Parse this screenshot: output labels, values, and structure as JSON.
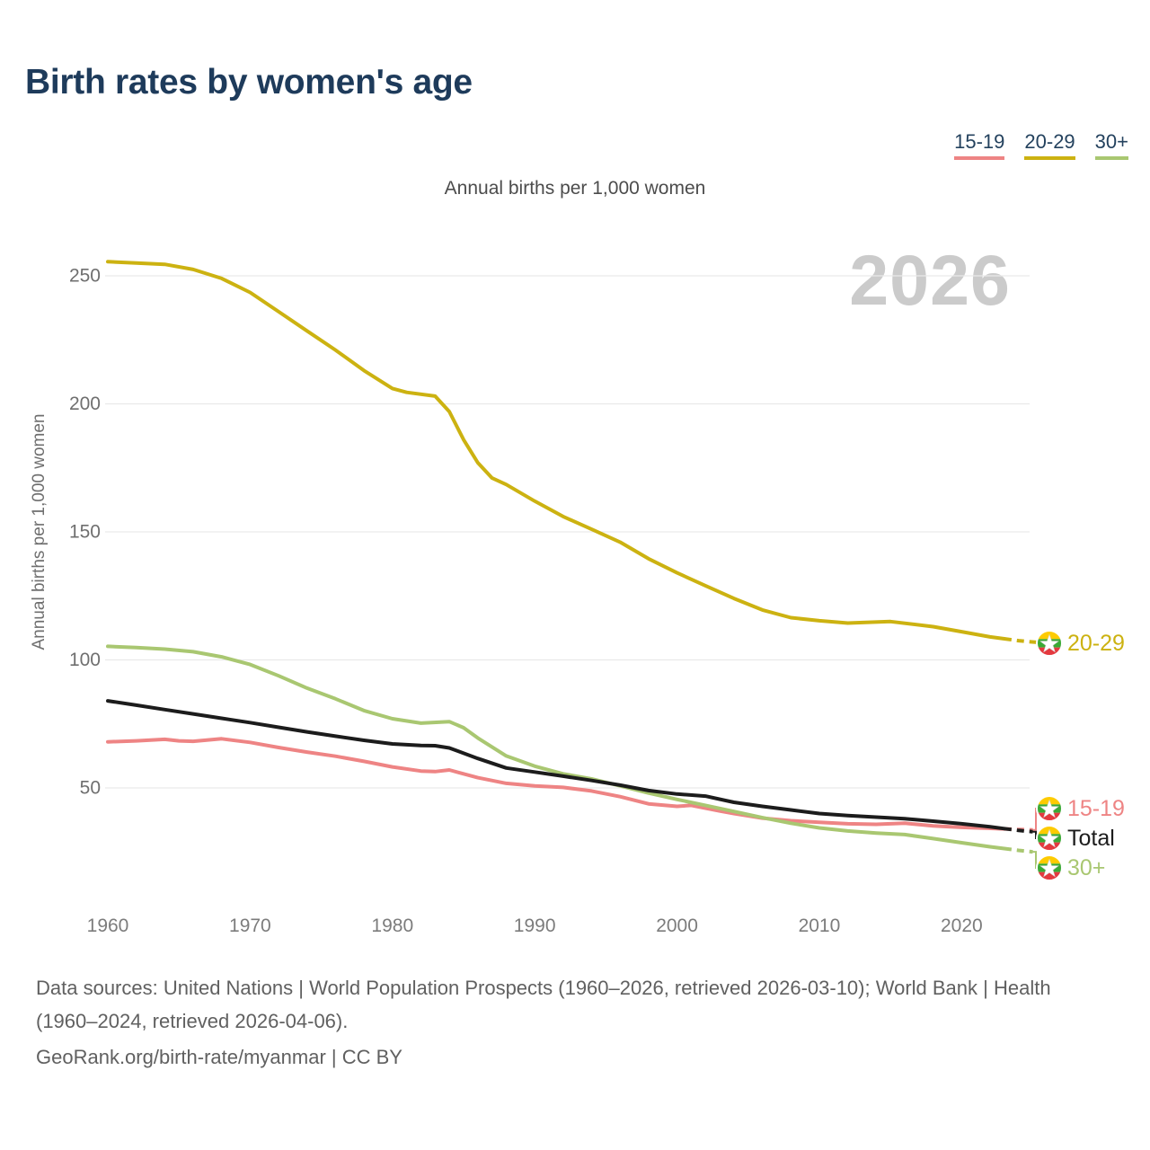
{
  "header": {
    "title": "Birth rates by women's age"
  },
  "subtitle": "Annual births per 1,000 women",
  "watermark": "2026",
  "y_axis_title": "Annual births per 1,000 women",
  "footer": {
    "sources_line": "Data sources: United Nations | World Population Prospects (1960–2026, retrieved 2026-03-10); World Bank | Health (1960–2024, retrieved 2026-04-06).",
    "attribution_line": "GeoRank.org/birth-rate/myanmar | CC BY"
  },
  "chart_data": {
    "type": "line",
    "title": "Annual births per 1,000 women",
    "ylabel": "Annual births per 1,000 women",
    "xlim": [
      1960,
      2026
    ],
    "ylim": [
      20,
      260
    ],
    "xticks": [
      1960,
      1970,
      1980,
      1990,
      2000,
      2010,
      2020
    ],
    "yticks": [
      50,
      100,
      150,
      200,
      250
    ],
    "grid": "horizontal",
    "legend_position": "top-right",
    "projection_dashed_from": 2023,
    "end_label_icon": "myanmar-flag-icon",
    "series": [
      {
        "id": "15-19",
        "label": "15-19",
        "color": "#ee8484",
        "in_legend": true,
        "points": [
          [
            1960,
            68
          ],
          [
            1962,
            68.4
          ],
          [
            1964,
            69
          ],
          [
            1965,
            68.4
          ],
          [
            1966,
            68.2
          ],
          [
            1968,
            69.2
          ],
          [
            1970,
            67.8
          ],
          [
            1972,
            65.8
          ],
          [
            1974,
            64
          ],
          [
            1976,
            62.4
          ],
          [
            1978,
            60.4
          ],
          [
            1980,
            58.2
          ],
          [
            1982,
            56.6
          ],
          [
            1983,
            56.4
          ],
          [
            1984,
            57
          ],
          [
            1986,
            54
          ],
          [
            1988,
            51.8
          ],
          [
            1990,
            50.8
          ],
          [
            1992,
            50.2
          ],
          [
            1994,
            48.8
          ],
          [
            1996,
            46.6
          ],
          [
            1998,
            43.8
          ],
          [
            2000,
            42.8
          ],
          [
            2001,
            43.2
          ],
          [
            2003,
            41
          ],
          [
            2004,
            40
          ],
          [
            2006,
            38.2
          ],
          [
            2008,
            37.2
          ],
          [
            2010,
            36.6
          ],
          [
            2012,
            36
          ],
          [
            2014,
            35.8
          ],
          [
            2016,
            36.2
          ],
          [
            2018,
            35.2
          ],
          [
            2020,
            34.6
          ],
          [
            2022,
            34.2
          ],
          [
            2024,
            33.8
          ],
          [
            2026,
            33.4
          ]
        ]
      },
      {
        "id": "20-29",
        "label": "20-29",
        "color": "#ccb211",
        "in_legend": true,
        "points": [
          [
            1960,
            255.5
          ],
          [
            1962,
            255
          ],
          [
            1964,
            254.5
          ],
          [
            1966,
            252.5
          ],
          [
            1968,
            249
          ],
          [
            1970,
            243.5
          ],
          [
            1972,
            236
          ],
          [
            1974,
            228.5
          ],
          [
            1976,
            221
          ],
          [
            1978,
            213
          ],
          [
            1980,
            206
          ],
          [
            1981,
            204.5
          ],
          [
            1983,
            203
          ],
          [
            1984,
            197
          ],
          [
            1985,
            186
          ],
          [
            1986,
            177
          ],
          [
            1987,
            171
          ],
          [
            1988,
            168.5
          ],
          [
            1990,
            162
          ],
          [
            1992,
            156
          ],
          [
            1994,
            151
          ],
          [
            1996,
            146
          ],
          [
            1998,
            139.5
          ],
          [
            2000,
            134
          ],
          [
            2002,
            129
          ],
          [
            2004,
            124
          ],
          [
            2006,
            119.5
          ],
          [
            2008,
            116.5
          ],
          [
            2010,
            115.3
          ],
          [
            2012,
            114.4
          ],
          [
            2015,
            115
          ],
          [
            2018,
            113
          ],
          [
            2020,
            111
          ],
          [
            2022,
            109
          ],
          [
            2024,
            107.5
          ],
          [
            2026,
            106.5
          ]
        ]
      },
      {
        "id": "30+",
        "label": "30+",
        "color": "#a9c771",
        "in_legend": true,
        "points": [
          [
            1960,
            105.3
          ],
          [
            1962,
            104.8
          ],
          [
            1964,
            104.2
          ],
          [
            1966,
            103.2
          ],
          [
            1968,
            101.2
          ],
          [
            1970,
            98.2
          ],
          [
            1972,
            93.8
          ],
          [
            1974,
            89
          ],
          [
            1976,
            84.8
          ],
          [
            1978,
            80.2
          ],
          [
            1980,
            77
          ],
          [
            1982,
            75.3
          ],
          [
            1984,
            75.9
          ],
          [
            1985,
            73.5
          ],
          [
            1986,
            69.5
          ],
          [
            1988,
            62.5
          ],
          [
            1990,
            58.5
          ],
          [
            1992,
            55.5
          ],
          [
            1994,
            53.5
          ],
          [
            1996,
            50.8
          ],
          [
            1998,
            48
          ],
          [
            2000,
            45.5
          ],
          [
            2002,
            43.2
          ],
          [
            2004,
            40.8
          ],
          [
            2006,
            38.4
          ],
          [
            2008,
            36.2
          ],
          [
            2010,
            34.4
          ],
          [
            2012,
            33.2
          ],
          [
            2014,
            32.4
          ],
          [
            2016,
            31.8
          ],
          [
            2018,
            30.2
          ],
          [
            2020,
            28.6
          ],
          [
            2022,
            27
          ],
          [
            2024,
            25.6
          ],
          [
            2026,
            24.5
          ]
        ]
      },
      {
        "id": "total",
        "label": "Total",
        "color": "#1c1c1c",
        "in_legend": false,
        "points": [
          [
            1960,
            84
          ],
          [
            1962,
            82.3
          ],
          [
            1964,
            80.6
          ],
          [
            1966,
            78.9
          ],
          [
            1968,
            77.2
          ],
          [
            1970,
            75.5
          ],
          [
            1972,
            73.7
          ],
          [
            1974,
            71.9
          ],
          [
            1976,
            70.2
          ],
          [
            1978,
            68.6
          ],
          [
            1980,
            67.2
          ],
          [
            1982,
            66.6
          ],
          [
            1983,
            66.5
          ],
          [
            1984,
            65.6
          ],
          [
            1986,
            61.5
          ],
          [
            1988,
            57.8
          ],
          [
            1990,
            56.2
          ],
          [
            1992,
            54.6
          ],
          [
            1994,
            52.9
          ],
          [
            1996,
            51.1
          ],
          [
            1998,
            49
          ],
          [
            2000,
            47.6
          ],
          [
            2002,
            46.8
          ],
          [
            2004,
            44.4
          ],
          [
            2006,
            42.8
          ],
          [
            2008,
            41.4
          ],
          [
            2010,
            40
          ],
          [
            2012,
            39.2
          ],
          [
            2014,
            38.6
          ],
          [
            2016,
            38
          ],
          [
            2018,
            37
          ],
          [
            2020,
            36
          ],
          [
            2022,
            34.8
          ],
          [
            2024,
            33.4
          ],
          [
            2026,
            32.4
          ]
        ]
      }
    ]
  }
}
